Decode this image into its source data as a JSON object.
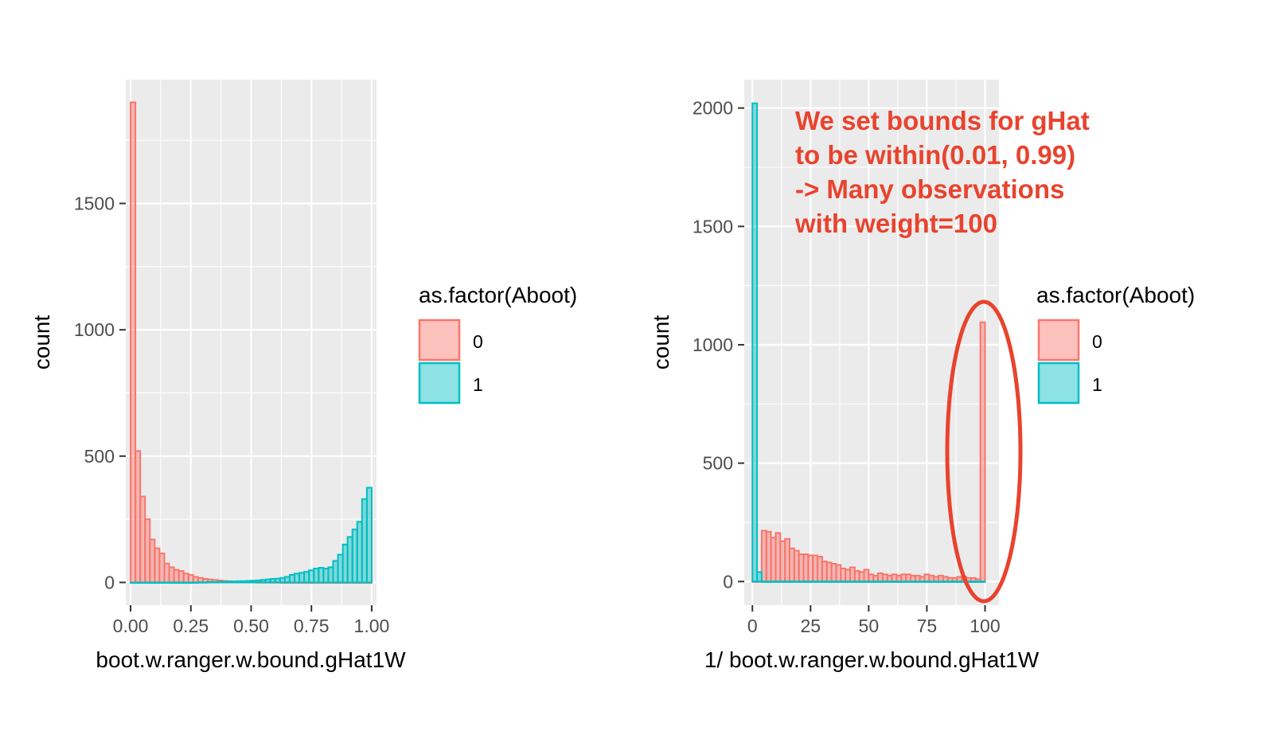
{
  "chart_data": [
    {
      "type": "bar",
      "subtype": "histogram",
      "xlabel": "boot.w.ranger.w.bound.gHat1W",
      "ylabel": "count",
      "xlim": [
        -0.02,
        1.02
      ],
      "ylim": [
        -90,
        1990
      ],
      "x_ticks": [
        0,
        0.25,
        0.5,
        0.75,
        1
      ],
      "x_tick_labels": [
        "0.00",
        "0.25",
        "0.50",
        "0.75",
        "1.00"
      ],
      "y_ticks": [
        0,
        500,
        1000,
        1500
      ],
      "y_tick_labels": [
        "0",
        "500",
        "1000",
        "1500"
      ],
      "grid": true,
      "legend": {
        "title": "as.factor(Aboot)",
        "placement": "right",
        "entries": [
          {
            "label": "0",
            "fill": "#f8766d",
            "alpha": 0.45
          },
          {
            "label": "1",
            "fill": "#00bfc4",
            "alpha": 0.45
          }
        ]
      },
      "bin_width": 0.02,
      "series": [
        {
          "name": "0",
          "color": "#f8766d",
          "x": [
            0.01,
            0.03,
            0.05,
            0.07,
            0.09,
            0.11,
            0.13,
            0.15,
            0.17,
            0.19,
            0.21,
            0.23,
            0.25,
            0.27,
            0.29,
            0.31,
            0.33,
            0.35,
            0.37,
            0.39,
            0.41,
            0.43,
            0.45,
            0.47,
            0.49,
            0.51,
            0.53,
            0.55,
            0.57,
            0.59,
            0.61,
            0.63,
            0.65,
            0.67,
            0.69,
            0.71,
            0.73,
            0.75,
            0.77,
            0.79,
            0.81,
            0.83,
            0.85,
            0.87,
            0.89,
            0.91,
            0.93,
            0.95,
            0.97,
            0.99
          ],
          "values": [
            1900,
            520,
            340,
            250,
            170,
            135,
            115,
            75,
            60,
            50,
            45,
            35,
            30,
            22,
            18,
            14,
            12,
            10,
            8,
            6,
            5,
            4,
            3,
            2,
            2,
            2,
            1,
            1,
            1,
            1,
            1,
            0,
            0,
            0,
            0,
            0,
            0,
            0,
            0,
            0,
            0,
            0,
            0,
            0,
            0,
            0,
            0,
            0,
            0,
            0
          ]
        },
        {
          "name": "1",
          "color": "#00bfc4",
          "x": [
            0.01,
            0.03,
            0.05,
            0.07,
            0.09,
            0.11,
            0.13,
            0.15,
            0.17,
            0.19,
            0.21,
            0.23,
            0.25,
            0.27,
            0.29,
            0.31,
            0.33,
            0.35,
            0.37,
            0.39,
            0.41,
            0.43,
            0.45,
            0.47,
            0.49,
            0.51,
            0.53,
            0.55,
            0.57,
            0.59,
            0.61,
            0.63,
            0.65,
            0.67,
            0.69,
            0.71,
            0.73,
            0.75,
            0.77,
            0.79,
            0.81,
            0.83,
            0.85,
            0.87,
            0.89,
            0.91,
            0.93,
            0.95,
            0.97,
            0.99
          ],
          "values": [
            0,
            0,
            0,
            0,
            0,
            0,
            0,
            0,
            0,
            0,
            0,
            0,
            0,
            0,
            1,
            1,
            2,
            2,
            3,
            3,
            4,
            4,
            5,
            5,
            6,
            7,
            8,
            10,
            12,
            14,
            15,
            18,
            22,
            30,
            35,
            38,
            42,
            48,
            55,
            58,
            55,
            60,
            85,
            110,
            150,
            180,
            210,
            240,
            330,
            375
          ]
        }
      ]
    },
    {
      "type": "bar",
      "subtype": "histogram",
      "xlabel": "1/ boot.w.ranger.w.bound.gHat1W",
      "ylabel": "count",
      "xlim": [
        -3.5,
        106
      ],
      "ylim": [
        -100,
        2120
      ],
      "x_ticks": [
        0,
        25,
        50,
        75,
        100
      ],
      "x_tick_labels": [
        "0",
        "25",
        "50",
        "75",
        "100"
      ],
      "y_ticks": [
        0,
        500,
        1000,
        1500,
        2000
      ],
      "y_tick_labels": [
        "0",
        "500",
        "1000",
        "1500",
        "2000"
      ],
      "grid": true,
      "legend": {
        "title": "as.factor(Aboot)",
        "placement": "right",
        "entries": [
          {
            "label": "0",
            "fill": "#f8766d",
            "alpha": 0.45
          },
          {
            "label": "1",
            "fill": "#00bfc4",
            "alpha": 0.45
          }
        ]
      },
      "bin_width": 2,
      "series": [
        {
          "name": "0",
          "color": "#f8766d",
          "x": [
            1,
            3,
            5,
            7,
            9,
            11,
            13,
            15,
            17,
            19,
            21,
            23,
            25,
            27,
            29,
            31,
            33,
            35,
            37,
            39,
            41,
            43,
            45,
            47,
            49,
            51,
            53,
            55,
            57,
            59,
            61,
            63,
            65,
            67,
            69,
            71,
            73,
            75,
            77,
            79,
            81,
            83,
            85,
            87,
            89,
            91,
            93,
            95,
            97,
            99
          ],
          "values": [
            0,
            0,
            215,
            210,
            185,
            205,
            170,
            180,
            140,
            130,
            115,
            115,
            110,
            110,
            105,
            85,
            80,
            75,
            70,
            55,
            50,
            60,
            45,
            40,
            50,
            30,
            25,
            35,
            30,
            25,
            30,
            25,
            30,
            30,
            25,
            25,
            20,
            30,
            25,
            20,
            25,
            20,
            15,
            15,
            20,
            20,
            15,
            15,
            10,
            1095
          ]
        },
        {
          "name": "1",
          "color": "#00bfc4",
          "x": [
            1,
            3,
            5,
            7,
            9,
            11,
            13,
            15,
            17,
            19,
            21,
            23,
            25,
            27,
            29,
            31,
            33,
            35,
            37,
            39,
            41,
            43,
            45,
            47,
            49,
            51,
            53,
            55,
            57,
            59,
            61,
            63,
            65,
            67,
            69,
            71,
            73,
            75,
            77,
            79,
            81,
            83,
            85,
            87,
            89,
            91,
            93,
            95,
            97,
            99
          ],
          "values": [
            2020,
            40,
            0,
            0,
            0,
            0,
            0,
            0,
            0,
            0,
            0,
            0,
            0,
            0,
            0,
            0,
            0,
            0,
            0,
            0,
            0,
            0,
            0,
            0,
            0,
            0,
            0,
            0,
            0,
            0,
            0,
            0,
            0,
            0,
            0,
            0,
            0,
            0,
            0,
            0,
            0,
            0,
            0,
            0,
            0,
            0,
            0,
            0,
            0,
            0
          ]
        }
      ],
      "annotation": {
        "lines": [
          "We set bounds for gHat",
          "to be within(0.01, 0.99)",
          "-> Many observations",
          "with weight=100"
        ],
        "color": "#e8432e",
        "ellipse_highlight": "bin at x=100"
      }
    }
  ]
}
